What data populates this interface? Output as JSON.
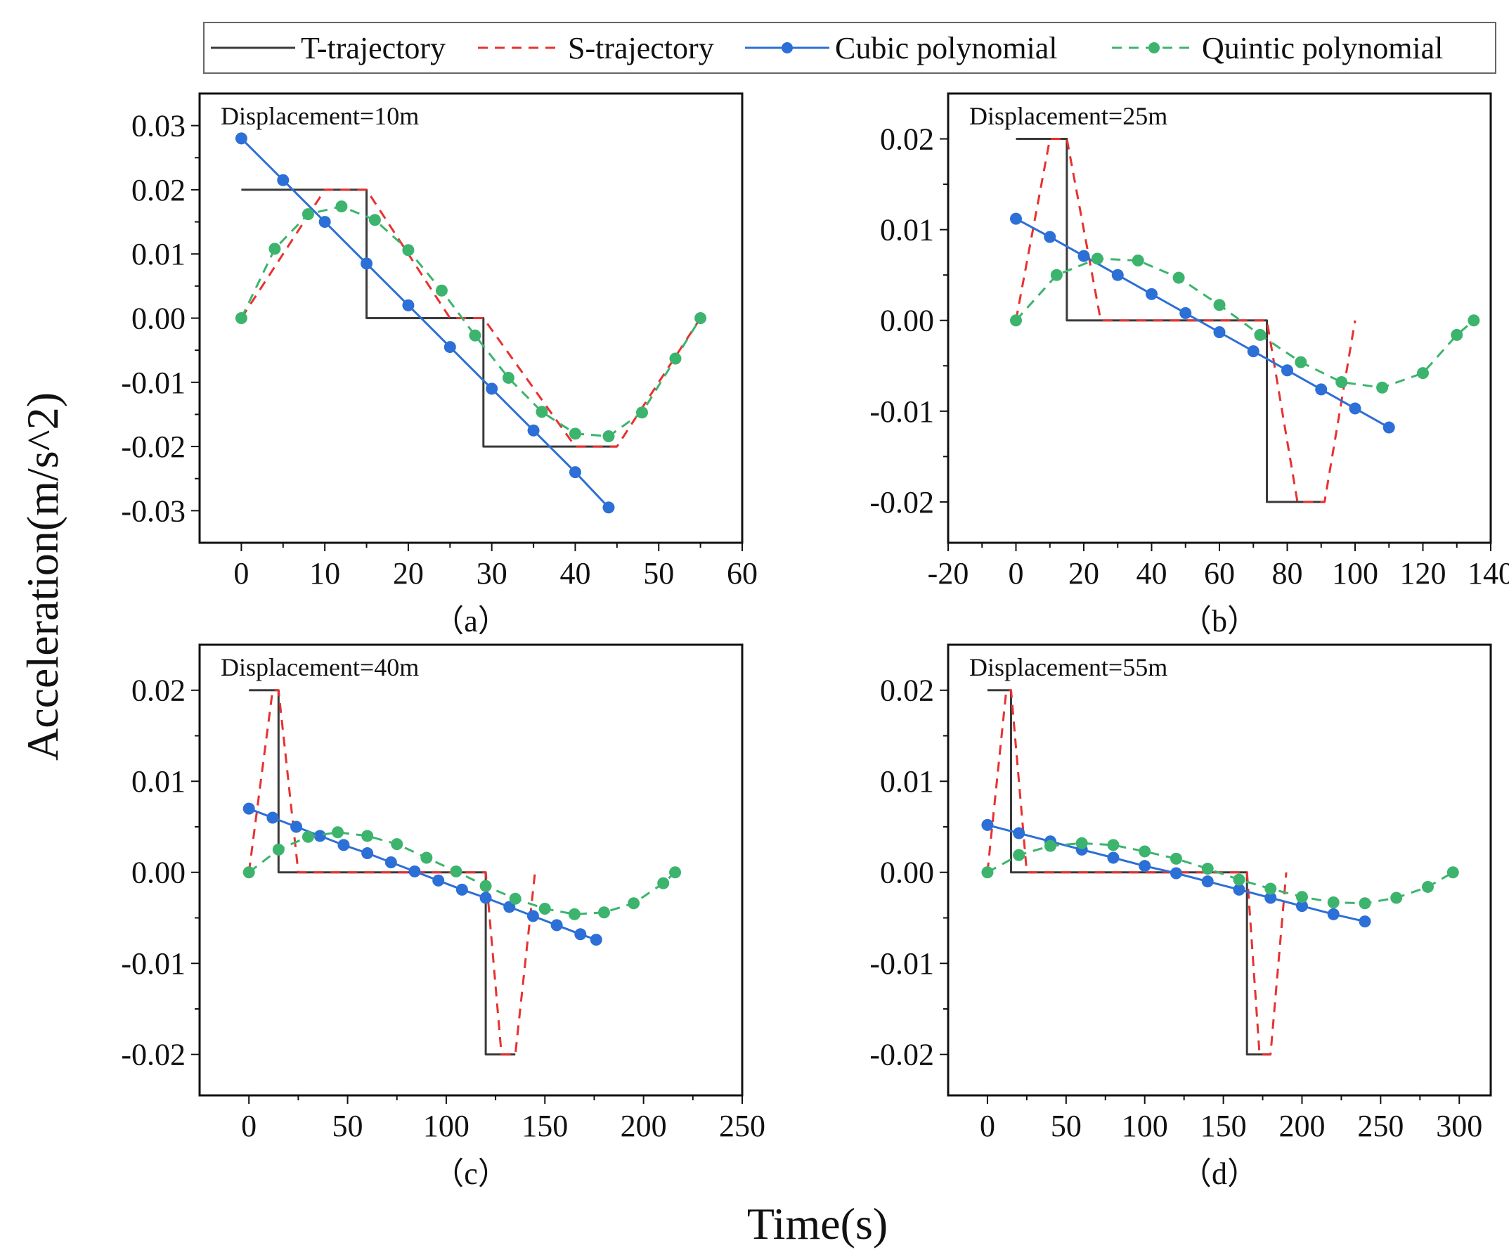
{
  "figure": {
    "xlabel": "Time(s)",
    "ylabel": "Acceleration(m/s^2)",
    "legend": [
      {
        "name": "T-trajectory",
        "color": "#3a3a3a",
        "dash": "solid",
        "marker": "none"
      },
      {
        "name": "S-trajectory",
        "color": "#e8312f",
        "dash": "dashed",
        "marker": "none"
      },
      {
        "name": "Cubic polynomial",
        "color": "#2c6fd6",
        "dash": "solid",
        "marker": "circle"
      },
      {
        "name": "Quintic polynomial",
        "color": "#3cb46e",
        "dash": "dashed",
        "marker": "circle"
      }
    ]
  },
  "chart_data": [
    {
      "type": "line",
      "panel": "(a)",
      "sublabel": "（a）",
      "annotation": "Displacement=10m",
      "xlim": [
        -5,
        60
      ],
      "ylim": [
        -0.035,
        0.035
      ],
      "xticks": [
        0,
        10,
        20,
        30,
        40,
        50,
        60
      ],
      "xticklabels": [
        "0",
        "10",
        "20",
        "30",
        "40",
        "50",
        "60"
      ],
      "yticks": [
        -0.03,
        -0.02,
        -0.01,
        0.0,
        0.01,
        0.02,
        0.03
      ],
      "yticklabels": [
        "-0.03",
        "-0.02",
        "-0.01",
        "0.00",
        "0.01",
        "0.02",
        "0.03"
      ],
      "series": [
        {
          "name": "T-trajectory",
          "x": [
            0,
            15,
            15,
            29,
            29,
            45
          ],
          "y": [
            0.02,
            0.02,
            0.0,
            0.0,
            -0.02,
            -0.02
          ]
        },
        {
          "name": "S-trajectory",
          "x": [
            0,
            10,
            15,
            25,
            29,
            40,
            45,
            55
          ],
          "y": [
            0.0,
            0.02,
            0.02,
            0.0,
            0.0,
            -0.02,
            -0.02,
            0.0
          ]
        },
        {
          "name": "Cubic polynomial",
          "x": [
            0,
            5,
            10,
            15,
            20,
            25,
            30,
            35,
            40,
            44
          ],
          "y": [
            0.028,
            0.0215,
            0.015,
            0.0085,
            0.002,
            -0.0045,
            -0.011,
            -0.0175,
            -0.024,
            -0.0295
          ]
        },
        {
          "name": "Quintic polynomial",
          "x": [
            0,
            4,
            8,
            12,
            16,
            20,
            24,
            28,
            32,
            36,
            40,
            44,
            48,
            52,
            55
          ],
          "y": [
            0.0,
            0.0108,
            0.0162,
            0.0174,
            0.0153,
            0.0106,
            0.0043,
            -0.0027,
            -0.0093,
            -0.0146,
            -0.018,
            -0.0184,
            -0.0147,
            -0.0063,
            0.0
          ]
        }
      ]
    },
    {
      "type": "line",
      "panel": "(b)",
      "sublabel": "（b）",
      "annotation": "Displacement=25m",
      "xlim": [
        -20,
        140
      ],
      "ylim": [
        -0.0245,
        0.025
      ],
      "xticks": [
        -20,
        0,
        20,
        40,
        60,
        80,
        100,
        120,
        140
      ],
      "xticklabels": [
        "-20",
        "0",
        "20",
        "40",
        "60",
        "80",
        "100",
        "120",
        "140"
      ],
      "yticks": [
        -0.02,
        -0.01,
        0.0,
        0.01,
        0.02
      ],
      "yticklabels": [
        "-0.02",
        "-0.01",
        "0.00",
        "0.01",
        "0.02"
      ],
      "series": [
        {
          "name": "T-trajectory",
          "x": [
            0,
            15,
            15,
            74,
            74,
            91
          ],
          "y": [
            0.02,
            0.02,
            0.0,
            0.0,
            -0.02,
            -0.02
          ]
        },
        {
          "name": "S-trajectory",
          "x": [
            0,
            10,
            15,
            25,
            74,
            83,
            91,
            100
          ],
          "y": [
            0.0,
            0.02,
            0.02,
            0.0,
            0.0,
            -0.02,
            -0.02,
            0.0
          ]
        },
        {
          "name": "Cubic polynomial",
          "x": [
            0,
            10,
            20,
            30,
            40,
            50,
            60,
            70,
            80,
            90,
            100,
            110
          ],
          "y": [
            0.0112,
            0.0092,
            0.0071,
            0.005,
            0.0029,
            0.0008,
            -0.0013,
            -0.0034,
            -0.0055,
            -0.0076,
            -0.0097,
            -0.0118
          ]
        },
        {
          "name": "Quintic polynomial",
          "x": [
            0,
            12,
            24,
            36,
            48,
            60,
            72,
            84,
            96,
            108,
            120,
            130,
            135
          ],
          "y": [
            0.0,
            0.005,
            0.0068,
            0.0066,
            0.0047,
            0.0017,
            -0.0016,
            -0.0046,
            -0.0068,
            -0.0074,
            -0.0058,
            -0.0016,
            0.0
          ]
        }
      ]
    },
    {
      "type": "line",
      "panel": "(c)",
      "sublabel": "（c）",
      "annotation": "Displacement=40m",
      "xlim": [
        -25,
        250
      ],
      "ylim": [
        -0.0245,
        0.025
      ],
      "xticks": [
        0,
        50,
        100,
        150,
        200,
        250
      ],
      "xticklabels": [
        "0",
        "50",
        "100",
        "150",
        "200",
        "250"
      ],
      "yticks": [
        -0.02,
        -0.01,
        0.0,
        0.01,
        0.02
      ],
      "yticklabels": [
        "-0.02",
        "-0.01",
        "0.00",
        "0.01",
        "0.02"
      ],
      "series": [
        {
          "name": "T-trajectory",
          "x": [
            0,
            15,
            15,
            120,
            120,
            135
          ],
          "y": [
            0.02,
            0.02,
            0.0,
            0.0,
            -0.02,
            -0.02
          ]
        },
        {
          "name": "S-trajectory",
          "x": [
            0,
            12,
            15,
            25,
            120,
            128,
            135,
            145
          ],
          "y": [
            0.0,
            0.02,
            0.02,
            0.0,
            0.0,
            -0.02,
            -0.02,
            0.0
          ]
        },
        {
          "name": "Cubic polynomial",
          "x": [
            0,
            12,
            24,
            36,
            48,
            60,
            72,
            84,
            96,
            108,
            120,
            132,
            144,
            156,
            168,
            176
          ],
          "y": [
            0.007,
            0.006,
            0.005,
            0.004,
            0.003,
            0.0021,
            0.0011,
            0.0001,
            -0.0009,
            -0.0019,
            -0.0028,
            -0.0038,
            -0.0048,
            -0.0058,
            -0.0068,
            -0.0074
          ]
        },
        {
          "name": "Quintic polynomial",
          "x": [
            0,
            15,
            30,
            45,
            60,
            75,
            90,
            105,
            120,
            135,
            150,
            165,
            180,
            195,
            210,
            216
          ],
          "y": [
            0.0,
            0.0025,
            0.0039,
            0.0044,
            0.004,
            0.0031,
            0.0016,
            0.0001,
            -0.0015,
            -0.0029,
            -0.004,
            -0.0046,
            -0.0044,
            -0.0034,
            -0.0012,
            0.0
          ]
        }
      ]
    },
    {
      "type": "line",
      "panel": "(d)",
      "sublabel": "（d）",
      "annotation": "Displacement=55m",
      "xlim": [
        -25,
        320
      ],
      "ylim": [
        -0.0245,
        0.025
      ],
      "xticks": [
        0,
        50,
        100,
        150,
        200,
        250,
        300
      ],
      "xticklabels": [
        "0",
        "50",
        "100",
        "150",
        "200",
        "250",
        "300"
      ],
      "yticks": [
        -0.02,
        -0.01,
        0.0,
        0.01,
        0.02
      ],
      "yticklabels": [
        "-0.02",
        "-0.01",
        "0.00",
        "0.01",
        "0.02"
      ],
      "series": [
        {
          "name": "T-trajectory",
          "x": [
            0,
            15,
            15,
            165,
            165,
            180
          ],
          "y": [
            0.02,
            0.02,
            0.0,
            0.0,
            -0.02,
            -0.02
          ]
        },
        {
          "name": "S-trajectory",
          "x": [
            0,
            12,
            15,
            25,
            165,
            173,
            180,
            190
          ],
          "y": [
            0.0,
            0.02,
            0.02,
            0.0,
            0.0,
            -0.02,
            -0.02,
            0.0
          ]
        },
        {
          "name": "Cubic polynomial",
          "x": [
            0,
            20,
            40,
            60,
            80,
            100,
            120,
            140,
            160,
            180,
            200,
            220,
            240
          ],
          "y": [
            0.0052,
            0.0043,
            0.0034,
            0.0025,
            0.0016,
            0.0007,
            -0.0001,
            -0.001,
            -0.0019,
            -0.0028,
            -0.0037,
            -0.0046,
            -0.0054
          ]
        },
        {
          "name": "Quintic polynomial",
          "x": [
            0,
            20,
            40,
            60,
            80,
            100,
            120,
            140,
            160,
            180,
            200,
            220,
            240,
            260,
            280,
            296
          ],
          "y": [
            0.0,
            0.0019,
            0.0029,
            0.0032,
            0.003,
            0.0023,
            0.0015,
            0.0004,
            -0.0008,
            -0.0018,
            -0.0027,
            -0.0033,
            -0.0034,
            -0.0028,
            -0.0016,
            0.0
          ]
        }
      ]
    }
  ]
}
